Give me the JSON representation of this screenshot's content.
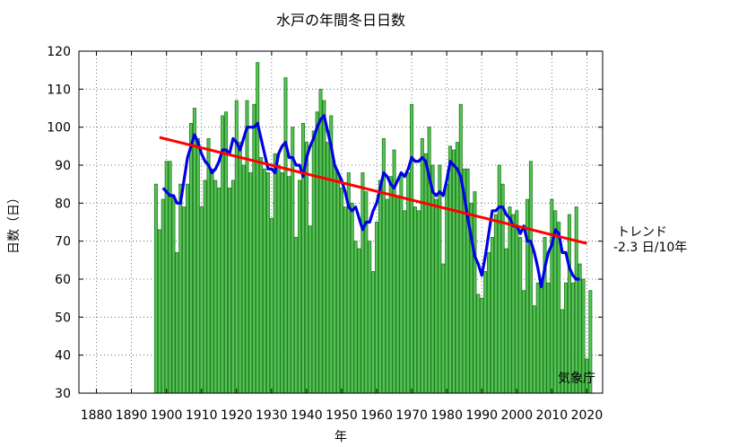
{
  "chart_data": {
    "type": "bar",
    "title": "水戸の年間冬日日数",
    "xlabel": "年",
    "ylabel": "日数（日）",
    "xlim": [
      1875,
      2024.5
    ],
    "ylim": [
      30,
      120
    ],
    "grid": true,
    "x_ticks": [
      1880,
      1890,
      1900,
      1910,
      1920,
      1930,
      1940,
      1950,
      1960,
      1970,
      1980,
      1990,
      2000,
      2010,
      2020
    ],
    "y_ticks": [
      30,
      40,
      50,
      60,
      70,
      80,
      90,
      100,
      110,
      120
    ],
    "bar_series": {
      "start_year": 1897,
      "color": "#55c455",
      "values": [
        85,
        73,
        81,
        91,
        91,
        82,
        67,
        85,
        79,
        85,
        101,
        105,
        97,
        79,
        86,
        97,
        89,
        86,
        84,
        103,
        104,
        84,
        86,
        107,
        96,
        90,
        107,
        88,
        106,
        117,
        92,
        89,
        88,
        76,
        93,
        90,
        88,
        113,
        87,
        100,
        71,
        86,
        101,
        96,
        74,
        99,
        104,
        110,
        107,
        96,
        103,
        90,
        88,
        84,
        79,
        88,
        80,
        70,
        68,
        88,
        83,
        70,
        62,
        75,
        86,
        97,
        81,
        87,
        94,
        82,
        88,
        78,
        88,
        106,
        79,
        78,
        97,
        93,
        100,
        90,
        81,
        90,
        64,
        85,
        95,
        94,
        96,
        106,
        89,
        89,
        80,
        83,
        56,
        55,
        62,
        67,
        71,
        77,
        90,
        85,
        68,
        79,
        77,
        78,
        71,
        57,
        81,
        91,
        53,
        59,
        58,
        71,
        59,
        81,
        78,
        75,
        52,
        59,
        77,
        59,
        79,
        64,
        60,
        39,
        57
      ]
    },
    "moving_average": {
      "color": "#0000e6",
      "points": [
        [
          1899,
          84
        ],
        [
          1900,
          83
        ],
        [
          1901,
          82
        ],
        [
          1902,
          82
        ],
        [
          1903,
          80
        ],
        [
          1904,
          80
        ],
        [
          1905,
          86
        ],
        [
          1906,
          92
        ],
        [
          1907,
          95
        ],
        [
          1908,
          98
        ],
        [
          1909,
          96
        ],
        [
          1910,
          93
        ],
        [
          1911,
          91
        ],
        [
          1912,
          90
        ],
        [
          1913,
          88
        ],
        [
          1914,
          89
        ],
        [
          1915,
          91
        ],
        [
          1916,
          94
        ],
        [
          1917,
          94
        ],
        [
          1918,
          93
        ],
        [
          1919,
          97
        ],
        [
          1920,
          96
        ],
        [
          1921,
          94
        ],
        [
          1922,
          97
        ],
        [
          1923,
          100
        ],
        [
          1924,
          100
        ],
        [
          1925,
          100
        ],
        [
          1926,
          101
        ],
        [
          1927,
          97
        ],
        [
          1928,
          93
        ],
        [
          1929,
          89
        ],
        [
          1930,
          89
        ],
        [
          1931,
          88
        ],
        [
          1932,
          93
        ],
        [
          1933,
          95
        ],
        [
          1934,
          96
        ],
        [
          1935,
          92
        ],
        [
          1936,
          92
        ],
        [
          1937,
          90
        ],
        [
          1938,
          90
        ],
        [
          1939,
          87
        ],
        [
          1940,
          92
        ],
        [
          1941,
          95
        ],
        [
          1942,
          97
        ],
        [
          1943,
          100
        ],
        [
          1944,
          102
        ],
        [
          1945,
          103
        ],
        [
          1946,
          99
        ],
        [
          1947,
          95
        ],
        [
          1948,
          90
        ],
        [
          1949,
          88
        ],
        [
          1950,
          86
        ],
        [
          1951,
          83
        ],
        [
          1952,
          79
        ],
        [
          1953,
          78
        ],
        [
          1954,
          79
        ],
        [
          1955,
          76
        ],
        [
          1956,
          73
        ],
        [
          1957,
          75
        ],
        [
          1958,
          75
        ],
        [
          1959,
          78
        ],
        [
          1960,
          80
        ],
        [
          1961,
          84
        ],
        [
          1962,
          88
        ],
        [
          1963,
          87
        ],
        [
          1964,
          85
        ],
        [
          1965,
          84
        ],
        [
          1966,
          86
        ],
        [
          1967,
          88
        ],
        [
          1968,
          87
        ],
        [
          1969,
          89
        ],
        [
          1970,
          92
        ],
        [
          1971,
          91
        ],
        [
          1972,
          91
        ],
        [
          1973,
          92
        ],
        [
          1974,
          91
        ],
        [
          1975,
          87
        ],
        [
          1976,
          83
        ],
        [
          1977,
          82
        ],
        [
          1978,
          83
        ],
        [
          1979,
          82
        ],
        [
          1980,
          86
        ],
        [
          1981,
          91
        ],
        [
          1982,
          90
        ],
        [
          1983,
          89
        ],
        [
          1984,
          87
        ],
        [
          1985,
          82
        ],
        [
          1986,
          76
        ],
        [
          1987,
          71
        ],
        [
          1988,
          66
        ],
        [
          1989,
          64
        ],
        [
          1990,
          61
        ],
        [
          1991,
          66
        ],
        [
          1992,
          72
        ],
        [
          1993,
          78
        ],
        [
          1994,
          78
        ],
        [
          1995,
          79
        ],
        [
          1996,
          79
        ],
        [
          1997,
          77
        ],
        [
          1998,
          76
        ],
        [
          1999,
          74
        ],
        [
          2000,
          74
        ],
        [
          2001,
          72
        ],
        [
          2002,
          74
        ],
        [
          2003,
          70
        ],
        [
          2004,
          70
        ],
        [
          2005,
          67
        ],
        [
          2006,
          63
        ],
        [
          2007,
          58
        ],
        [
          2008,
          63
        ],
        [
          2009,
          67
        ],
        [
          2010,
          69
        ],
        [
          2011,
          73
        ],
        [
          2012,
          72
        ],
        [
          2013,
          67
        ],
        [
          2014,
          67
        ],
        [
          2015,
          63
        ],
        [
          2016,
          61
        ],
        [
          2017,
          60
        ],
        [
          2018,
          60
        ]
      ]
    },
    "trend": {
      "color": "#ff0000",
      "points": [
        [
          1898,
          97.3
        ],
        [
          2020,
          69.4
        ]
      ],
      "label": "トレンド",
      "value_label": "-2.3 日/10年"
    },
    "source": "気象庁"
  }
}
